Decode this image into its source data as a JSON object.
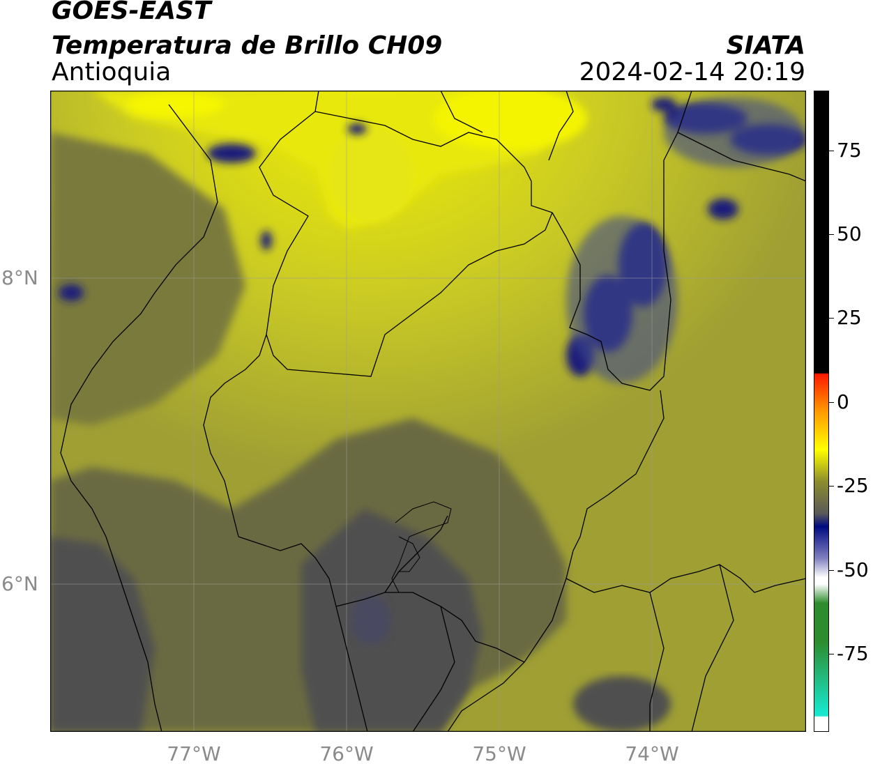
{
  "header": {
    "title_line1": "GOES-EAST",
    "title_line2": "Temperatura de Brillo CH09",
    "brand": "SIATA",
    "region": "Antioquia",
    "timestamp": "2024-02-14 20:19"
  },
  "map": {
    "lat_labels": [
      "8°N",
      "6°N"
    ],
    "lon_labels": [
      "77°W",
      "76°W",
      "75°W",
      "74°W"
    ]
  },
  "colorbar": {
    "tick_labels": [
      "75",
      "50",
      "25",
      "0",
      "-25",
      "-50",
      "-75"
    ],
    "colors": {
      "black": "#000000",
      "red": "#ff1a00",
      "orange": "#ff9900",
      "yellow": "#ffff00",
      "olive": "#8c8c2d",
      "gray": "#5a5a5a",
      "navy": "#000a80",
      "white": "#ffffff",
      "green": "#2d8c2d",
      "cyan": "#19e6cc"
    }
  }
}
